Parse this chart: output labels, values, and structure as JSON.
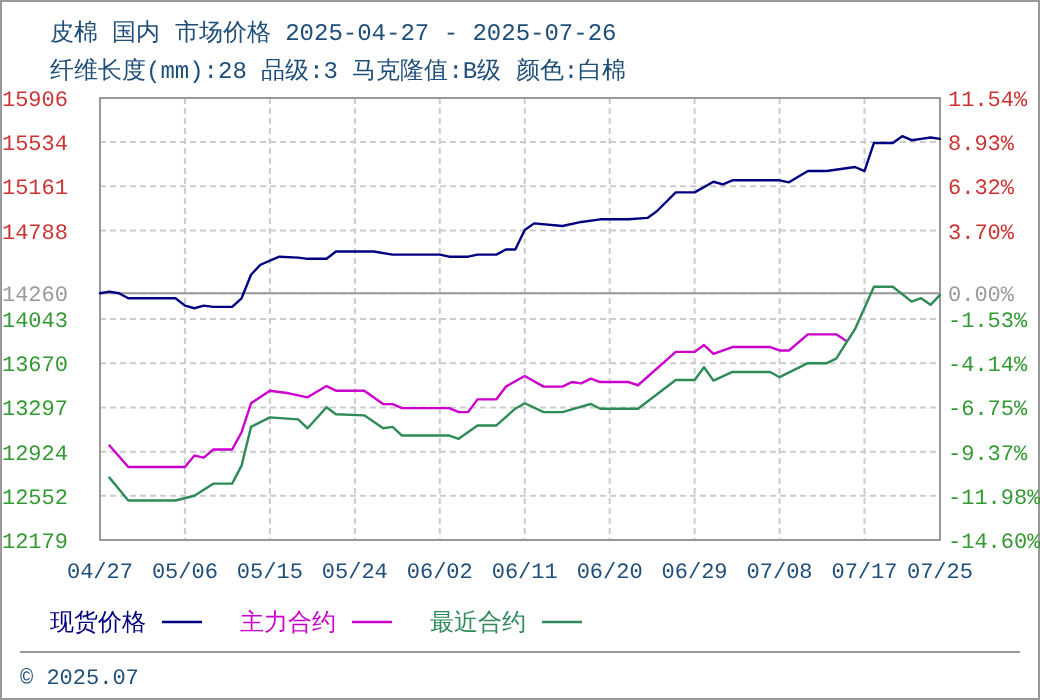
{
  "chart_data": {
    "type": "line",
    "title": "皮棉 国内 市场价格 2025-04-27 - 2025-07-26",
    "subtitle": "纤维长度(mm):28 品级:3 马克隆值:B级 颜色:白棉",
    "xlim": [
      "2025-04-27",
      "2025-07-25"
    ],
    "xticks": [
      {
        "value": "2025-04-27",
        "label": "04/27"
      },
      {
        "value": "2025-05-06",
        "label": "05/06"
      },
      {
        "value": "2025-05-15",
        "label": "05/15"
      },
      {
        "value": "2025-05-24",
        "label": "05/24"
      },
      {
        "value": "2025-06-02",
        "label": "06/02"
      },
      {
        "value": "2025-06-11",
        "label": "06/11"
      },
      {
        "value": "2025-06-20",
        "label": "06/20"
      },
      {
        "value": "2025-06-29",
        "label": "06/29"
      },
      {
        "value": "2025-07-08",
        "label": "07/08"
      },
      {
        "value": "2025-07-17",
        "label": "07/17"
      },
      {
        "value": "2025-07-25",
        "label": "07/25"
      }
    ],
    "ylim": [
      12179,
      15906
    ],
    "yticks": [
      12179,
      12552,
      12924,
      13297,
      13670,
      14043,
      14260,
      14788,
      15161,
      15534,
      15906
    ],
    "y2lim": [
      -14.6,
      11.54
    ],
    "y2ticks": [
      {
        "value": -14.6,
        "label": "-14.60%"
      },
      {
        "value": -11.98,
        "label": "-11.98%"
      },
      {
        "value": -9.37,
        "label": "-9.37%"
      },
      {
        "value": -6.75,
        "label": "-6.75%"
      },
      {
        "value": -4.14,
        "label": "-4.14%"
      },
      {
        "value": -1.53,
        "label": "-1.53%"
      },
      {
        "value": 0,
        "label": "0.00%"
      },
      {
        "value": 3.7,
        "label": "3.70%"
      },
      {
        "value": 6.32,
        "label": "6.32%"
      },
      {
        "value": 8.93,
        "label": "8.93%"
      },
      {
        "value": 11.54,
        "label": "11.54%"
      }
    ],
    "grid": true,
    "legend": "bottom left",
    "ref_lines": [
      {
        "axis": "y",
        "value": 14260,
        "color": "#999999"
      }
    ],
    "annotations": [
      "© 2025.07"
    ],
    "series": [
      {
        "name": "现货价格",
        "color": "#000080",
        "x": [
          "2025-04-27",
          "2025-04-28",
          "2025-04-29",
          "2025-04-30",
          "2025-05-05",
          "2025-05-06",
          "2025-05-07",
          "2025-05-08",
          "2025-05-09",
          "2025-05-11",
          "2025-05-12",
          "2025-05-13",
          "2025-05-14",
          "2025-05-16",
          "2025-05-18",
          "2025-05-19",
          "2025-05-21",
          "2025-05-22",
          "2025-05-26",
          "2025-05-28",
          "2025-06-02",
          "2025-06-03",
          "2025-06-05",
          "2025-06-06",
          "2025-06-08",
          "2025-06-09",
          "2025-06-10",
          "2025-06-11",
          "2025-06-12",
          "2025-06-15",
          "2025-06-17",
          "2025-06-19",
          "2025-06-22",
          "2025-06-24",
          "2025-06-25",
          "2025-06-27",
          "2025-06-29",
          "2025-07-01",
          "2025-07-02",
          "2025-07-03",
          "2025-07-08",
          "2025-07-09",
          "2025-07-11",
          "2025-07-13",
          "2025-07-16",
          "2025-07-17",
          "2025-07-18",
          "2025-07-20",
          "2025-07-21",
          "2025-07-22",
          "2025-07-23",
          "2025-07-24",
          "2025-07-25"
        ],
        "values": [
          14260,
          14273,
          14260,
          14217,
          14217,
          14155,
          14133,
          14155,
          14145,
          14145,
          14217,
          14416,
          14500,
          14568,
          14560,
          14550,
          14550,
          14612,
          14612,
          14585,
          14585,
          14568,
          14568,
          14585,
          14585,
          14629,
          14629,
          14793,
          14849,
          14827,
          14861,
          14883,
          14883,
          14895,
          14951,
          15110,
          15110,
          15200,
          15178,
          15212,
          15212,
          15195,
          15290,
          15290,
          15324,
          15290,
          15527,
          15527,
          15584,
          15550,
          15561,
          15573,
          15561
        ]
      },
      {
        "name": "主力合约",
        "color": "#cc00cc",
        "x": [
          "2025-04-28",
          "2025-04-30",
          "2025-05-06",
          "2025-05-07",
          "2025-05-08",
          "2025-05-09",
          "2025-05-11",
          "2025-05-12",
          "2025-05-13",
          "2025-05-15",
          "2025-05-17",
          "2025-05-19",
          "2025-05-21",
          "2025-05-22",
          "2025-05-25",
          "2025-05-27",
          "2025-05-28",
          "2025-05-29",
          "2025-06-03",
          "2025-06-04",
          "2025-06-05",
          "2025-06-06",
          "2025-06-08",
          "2025-06-09",
          "2025-06-11",
          "2025-06-13",
          "2025-06-15",
          "2025-06-16",
          "2025-06-17",
          "2025-06-18",
          "2025-06-19",
          "2025-06-22",
          "2025-06-23",
          "2025-06-27",
          "2025-06-29",
          "2025-06-30",
          "2025-07-01",
          "2025-07-03",
          "2025-07-07",
          "2025-07-08",
          "2025-07-09",
          "2025-07-11",
          "2025-07-14",
          "2025-07-15"
        ],
        "values": [
          12976,
          12795,
          12795,
          12891,
          12874,
          12942,
          12942,
          13088,
          13332,
          13438,
          13416,
          13382,
          13477,
          13438,
          13438,
          13325,
          13325,
          13291,
          13291,
          13257,
          13257,
          13365,
          13365,
          13472,
          13562,
          13472,
          13472,
          13511,
          13500,
          13540,
          13511,
          13511,
          13484,
          13765,
          13765,
          13823,
          13748,
          13806,
          13806,
          13777,
          13777,
          13913,
          13913,
          13862
        ]
      },
      {
        "name": "最近合约",
        "color": "#2e8b57",
        "x": [
          "2025-04-28",
          "2025-04-30",
          "2025-05-05",
          "2025-05-07",
          "2025-05-09",
          "2025-05-11",
          "2025-05-12",
          "2025-05-13",
          "2025-05-15",
          "2025-05-18",
          "2025-05-19",
          "2025-05-21",
          "2025-05-22",
          "2025-05-25",
          "2025-05-27",
          "2025-05-28",
          "2025-05-29",
          "2025-06-03",
          "2025-06-04",
          "2025-06-06",
          "2025-06-08",
          "2025-06-10",
          "2025-06-11",
          "2025-06-13",
          "2025-06-15",
          "2025-06-17",
          "2025-06-18",
          "2025-06-19",
          "2025-06-23",
          "2025-06-27",
          "2025-06-29",
          "2025-06-30",
          "2025-07-01",
          "2025-07-03",
          "2025-07-07",
          "2025-07-08",
          "2025-07-11",
          "2025-07-13",
          "2025-07-14",
          "2025-07-16",
          "2025-07-18",
          "2025-07-20",
          "2025-07-22",
          "2025-07-23",
          "2025-07-24",
          "2025-07-25"
        ],
        "values": [
          12705,
          12512,
          12512,
          12552,
          12654,
          12654,
          12806,
          13133,
          13213,
          13196,
          13121,
          13298,
          13240,
          13230,
          13121,
          13133,
          13060,
          13060,
          13032,
          13145,
          13145,
          13286,
          13332,
          13257,
          13257,
          13303,
          13326,
          13286,
          13286,
          13528,
          13528,
          13636,
          13523,
          13596,
          13596,
          13552,
          13670,
          13670,
          13709,
          13958,
          14314,
          14314,
          14189,
          14218,
          14162,
          14246
        ]
      }
    ]
  }
}
